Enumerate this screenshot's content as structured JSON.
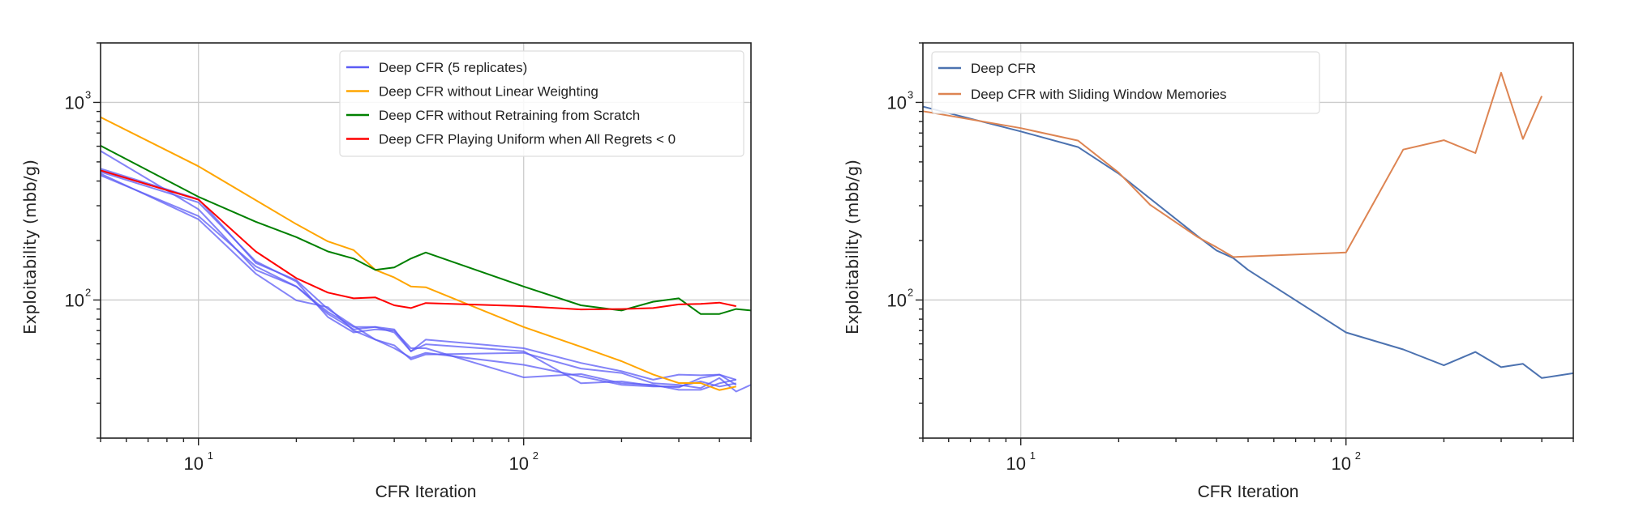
{
  "chart_data": [
    {
      "type": "line",
      "xlabel": "CFR Iteration",
      "ylabel": "Exploitability (mbb/g)",
      "xscale": "log",
      "yscale": "log",
      "xlim": [
        5,
        500
      ],
      "ylim": [
        20,
        2000
      ],
      "x_tick_labels": [
        {
          "base": "10",
          "exp": "1",
          "value": 10
        },
        {
          "base": "10",
          "exp": "2",
          "value": 100
        }
      ],
      "y_tick_labels": [
        {
          "base": "10",
          "exp": "2",
          "value": 100
        },
        {
          "base": "10",
          "exp": "3",
          "value": 1000
        }
      ],
      "grid": true,
      "legend_position": "top-right",
      "legend": [
        "Deep CFR (5 replicates)",
        "Deep CFR without Linear Weighting",
        "Deep CFR without Retraining from Scratch",
        "Deep CFR Playing Uniform when All Regrets < 0"
      ],
      "series": [
        {
          "name": "Deep CFR (5 replicates)",
          "color": "#5b5bf5",
          "x": [
            5,
            10,
            15,
            20,
            25,
            30,
            35,
            40,
            45,
            50,
            100,
            150,
            200,
            250,
            300,
            350,
            400,
            450
          ],
          "y": [
            568,
            288,
            142,
            117,
            85,
            71,
            73,
            71,
            55,
            63,
            57,
            48,
            43.6,
            39.5,
            41.9,
            41.6,
            41.9,
            39.5
          ]
        },
        {
          "name": "",
          "color": "#5b5bf5",
          "x": [
            5,
            10,
            15,
            20,
            25,
            30,
            35,
            40,
            45,
            50,
            100,
            150,
            200,
            250,
            300,
            350,
            400,
            450,
            500
          ],
          "y": [
            462,
            324,
            154,
            126,
            90,
            74,
            63,
            59,
            50,
            53,
            54,
            45,
            42.7,
            37.9,
            37.2,
            35.8,
            40.3,
            34.4,
            37.2
          ]
        },
        {
          "name": "",
          "color": "#5b5bf5",
          "x": [
            5,
            10,
            15,
            20,
            25,
            30,
            35,
            40,
            45,
            50,
            100,
            150,
            200,
            250,
            300,
            350,
            400,
            450
          ],
          "y": [
            436,
            256,
            136,
            99.6,
            92,
            70,
            63,
            57,
            51,
            54,
            47,
            41,
            37.2,
            36.5,
            36.5,
            38.7,
            36.5,
            37.9
          ]
        },
        {
          "name": "",
          "color": "#5b5bf5",
          "x": [
            5,
            10,
            15,
            20,
            25,
            30,
            35,
            40,
            45,
            50,
            100,
            150,
            200,
            250,
            300,
            350,
            400,
            450
          ],
          "y": [
            445,
            312,
            157,
            124,
            82,
            68.5,
            71,
            70,
            57,
            57,
            40.6,
            42.2,
            37.9,
            37.2,
            35.1,
            35.1,
            37.9,
            39.5
          ]
        },
        {
          "name": "",
          "color": "#5b5bf5",
          "x": [
            5,
            10,
            15,
            20,
            25,
            30,
            35,
            40,
            45,
            50,
            100,
            150,
            200,
            250,
            300,
            350,
            400,
            450
          ],
          "y": [
            427,
            266,
            148,
            117,
            87,
            73,
            73,
            68.5,
            55,
            59.7,
            55,
            37.9,
            38.7,
            36.8,
            36.1,
            40.3,
            41.9,
            37.2
          ]
        },
        {
          "name": "Deep CFR without Linear Weighting",
          "color": "#ffa500",
          "x": [
            5,
            10,
            20,
            25,
            30,
            35,
            40,
            45,
            50,
            100,
            150,
            200,
            250,
            300,
            350,
            400,
            450
          ],
          "y": [
            841,
            475,
            242,
            198,
            179,
            142,
            130,
            117,
            116,
            73,
            58,
            49,
            42,
            38,
            38,
            35,
            36.5
          ]
        },
        {
          "name": "Deep CFR without Retraining from Scratch",
          "color": "#008000",
          "x": [
            5,
            10,
            15,
            20,
            25,
            30,
            35,
            40,
            45,
            50,
            100,
            150,
            200,
            250,
            300,
            350,
            400,
            450,
            500
          ],
          "y": [
            604,
            333,
            249,
            208,
            176,
            162,
            142,
            146,
            162,
            174,
            117,
            94,
            88.5,
            98,
            102,
            85,
            85,
            90,
            88.5
          ]
        },
        {
          "name": "Deep CFR Playing Uniform when All Regrets < 0",
          "color": "#ff0000",
          "x": [
            5,
            10,
            15,
            20,
            25,
            30,
            35,
            40,
            45,
            50,
            100,
            150,
            200,
            250,
            300,
            350,
            400,
            450
          ],
          "y": [
            453,
            322,
            176,
            129,
            109,
            102,
            103,
            94,
            91,
            96.5,
            93,
            89.6,
            90,
            91,
            95,
            95.5,
            97,
            93
          ]
        }
      ]
    },
    {
      "type": "line",
      "xlabel": "CFR Iteration",
      "ylabel": "Exploitability (mbb/g)",
      "xscale": "log",
      "yscale": "log",
      "xlim": [
        5,
        500
      ],
      "ylim": [
        20,
        2000
      ],
      "x_tick_labels": [
        {
          "base": "10",
          "exp": "1",
          "value": 10
        },
        {
          "base": "10",
          "exp": "2",
          "value": 100
        }
      ],
      "y_tick_labels": [
        {
          "base": "10",
          "exp": "2",
          "value": 100
        },
        {
          "base": "10",
          "exp": "3",
          "value": 1000
        }
      ],
      "grid": true,
      "legend_position": "top-left",
      "legend": [
        "Deep CFR",
        "Deep CFR with Sliding Window Memories"
      ],
      "series": [
        {
          "name": "Deep CFR",
          "color": "#4c72b0",
          "x": [
            5,
            10,
            15,
            20,
            35,
            40,
            45,
            50,
            100,
            150,
            200,
            250,
            300,
            350,
            400,
            500
          ],
          "y": [
            953,
            713,
            594,
            436,
            210,
            178,
            163,
            142,
            68.5,
            56.2,
            46.7,
            54.6,
            45.7,
            47.5,
            40.3,
            42.6
          ]
        },
        {
          "name": "Deep CFR with Sliding Window Memories",
          "color": "#dd8452",
          "x": [
            5,
            10,
            15,
            20,
            25,
            35,
            40,
            45,
            100,
            150,
            200,
            250,
            300,
            350,
            400
          ],
          "y": [
            903,
            741,
            641,
            441,
            303,
            208,
            185,
            165,
            174,
            577,
            644,
            554,
            1413,
            653,
            1077
          ]
        }
      ]
    }
  ]
}
